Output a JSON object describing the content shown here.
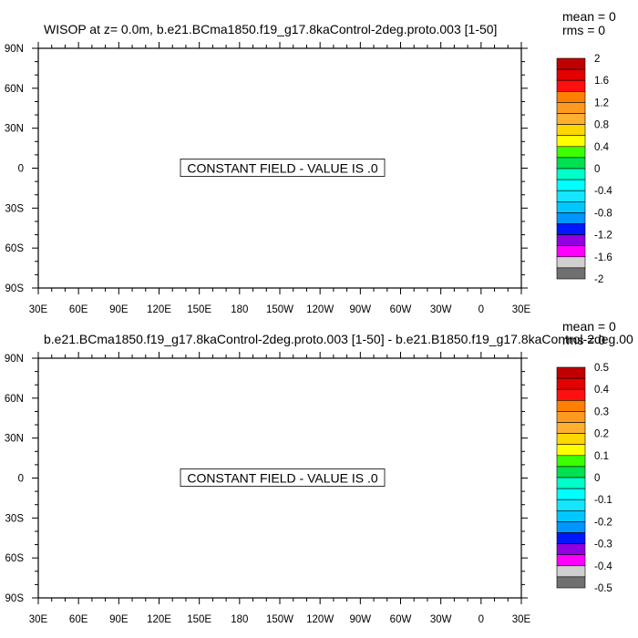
{
  "chart_data": [
    {
      "type": "heatmap",
      "title": "WISOP at z=   0.0m, b.e21.BCma1850.f19_g17.8kaControl-2deg.proto.003 [1-50]",
      "stats": [
        "mean = 0",
        "rms = 0"
      ],
      "annotation": "CONSTANT FIELD - VALUE IS .0",
      "x_tick_labels": [
        "30E",
        "60E",
        "90E",
        "120E",
        "150E",
        "180",
        "150W",
        "120W",
        "90W",
        "60W",
        "30W",
        "0",
        "30E"
      ],
      "y_tick_labels": [
        "90N",
        "60N",
        "30N",
        "0",
        "30S",
        "60S",
        "90S"
      ],
      "xlim": [
        30,
        390
      ],
      "ylim": [
        -90,
        90
      ],
      "field_value": 0,
      "colorbar": {
        "labels": [
          "2",
          "1.6",
          "1.2",
          "0.8",
          "0.4",
          "0",
          "-0.4",
          "-0.8",
          "-1.2",
          "-1.6",
          "-2"
        ],
        "colors": [
          "#c00000",
          "#e30000",
          "#ff1010",
          "#ff7f00",
          "#ff9a20",
          "#ffb030",
          "#ffd700",
          "#ffff00",
          "#3cff00",
          "#00e050",
          "#00ffc8",
          "#00ffff",
          "#14e6ff",
          "#00c8ff",
          "#0096ff",
          "#0018ff",
          "#9000e0",
          "#ff00ff",
          "#d0d0d0",
          "#707070"
        ]
      }
    },
    {
      "type": "heatmap",
      "title": "b.e21.BCma1850.f19_g17.8kaControl-2deg.proto.003 [1-50] - b.e21.B1850.f19_g17.8kaControl-2deg.00",
      "stats": [
        "mean = 0",
        "rms = 0"
      ],
      "annotation": "CONSTANT FIELD - VALUE IS .0",
      "x_tick_labels": [
        "30E",
        "60E",
        "90E",
        "120E",
        "150E",
        "180",
        "150W",
        "120W",
        "90W",
        "60W",
        "30W",
        "0",
        "30E"
      ],
      "y_tick_labels": [
        "90N",
        "60N",
        "30N",
        "0",
        "30S",
        "60S",
        "90S"
      ],
      "xlim": [
        30,
        390
      ],
      "ylim": [
        -90,
        90
      ],
      "field_value": 0,
      "colorbar": {
        "labels": [
          "0.5",
          "0.4",
          "0.3",
          "0.2",
          "0.1",
          "0",
          "-0.1",
          "-0.2",
          "-0.3",
          "-0.4",
          "-0.5"
        ],
        "colors": [
          "#c00000",
          "#e30000",
          "#ff1010",
          "#ff7f00",
          "#ff9a20",
          "#ffb030",
          "#ffd700",
          "#ffff00",
          "#3cff00",
          "#00e050",
          "#00ffc8",
          "#00ffff",
          "#14e6ff",
          "#00c8ff",
          "#0096ff",
          "#0018ff",
          "#9000e0",
          "#ff00ff",
          "#d0d0d0",
          "#707070"
        ]
      }
    }
  ]
}
